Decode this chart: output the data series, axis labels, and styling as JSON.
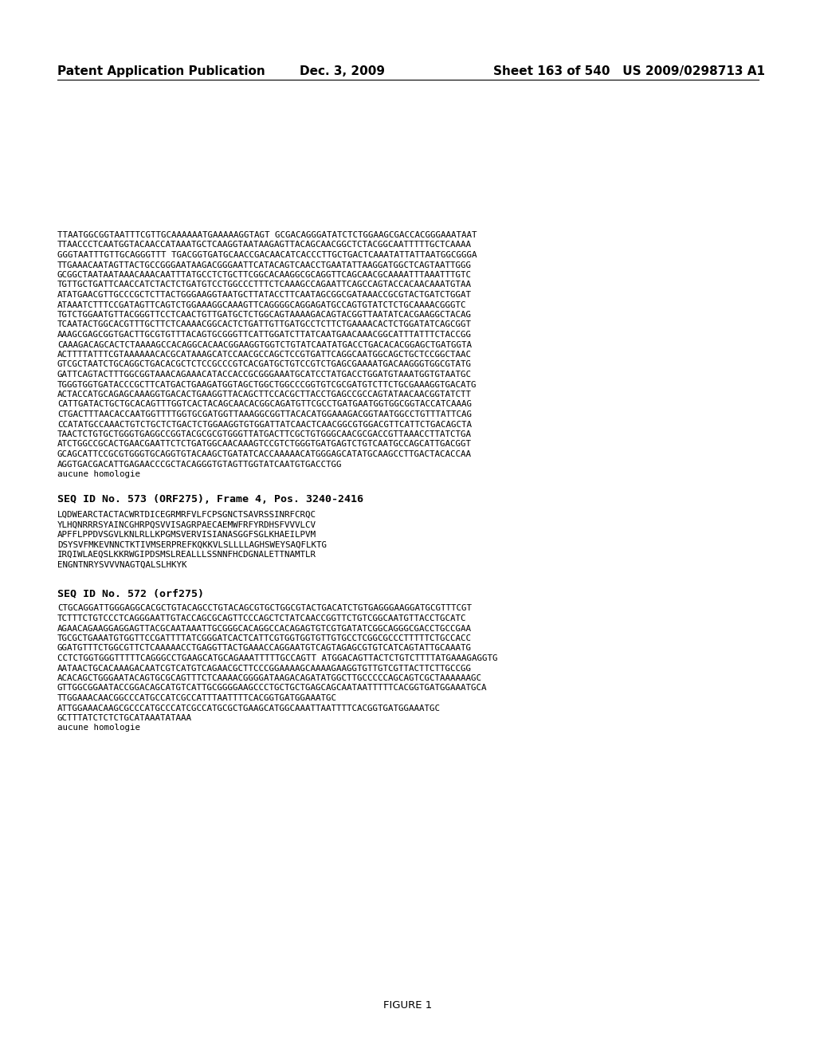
{
  "header_left": "Patent Application Publication",
  "header_center": "Dec. 3, 2009",
  "header_right": "Sheet 163 of 540   US 2009/0298713 A1",
  "background_color": "#ffffff",
  "text_color": "#000000",
  "figure_label": "FIGURE 1",
  "dna_block1": [
    "TTAATGGCGGTAATTTCGTTGCAAAAAATGAAAAAGGTAGT GCGACAGGGATATCTCTGGAAGCGACCACGGGAAATAAT",
    "TTAACCCTCAATGGTACAACCATAAATGCTCAAGGTAATAAGAGTTACAGCAACGGCTCTACGGCAATTTTTGCTCAAAA",
    "GGGTAATTTGTTGCAGGGTTT TGACGGTGATGCAACCGACAACATCACCCTTGCTGACTCAAATATTATTAATGGCGGGA",
    "TTGAAACAATAGTTACTGCCGGGAATAAGACGGGAATTCATACAGTCAACCTGAATATTAAGGATGGCTCAGTAATTGGG",
    "GCGGCTAATAATAAACAAACAATTTATGCCTCTGCTTCGGCACAAGGCGCAGGTTCAGCAACGCAAAATTTAAATTTGTC",
    "TGTTGCTGATTCAACCATCTACTCTGATGTCCTGGCCCTTTCTCAAAGCCAGAATTCAGCCAGTACCACAACAAATGTAA",
    "ATATGAACGTTGCCCGCTCTTACTGGGAAGGTAATGCTTATACCTTCAATAGCGGCGATAAACCGCGTACTGATCTGGAT",
    "ATAAATCTTTCCGATAGTTCAGTCTGGAAAGGCAAAGTTCAGGGGCAGGAGATGCCAGTGTATCTCTGCAAAACGGGTC",
    "TGTCTGGAATGTTACGGGTTCCTCAACTGTTGATGCTCTGGCAGTAAAAGACAGTACGGTTAATATCACGAAGGCTACAG",
    "TCAATACTGGCACGTTTGCTTCTCAAAACGGCACTCTGATTGTTGATGCCTCTTCTGAAAACACTCTGGATATCAGCGGT",
    "AAAGCGAGCGGTGACTTGCGTGTTTACAGTGCGGGTTCATTGGATCTTATCAATGAACAAACGGCATTTATTTCTACCGG",
    "CAAAGACAGCACTCTAAAAGCCACAGGCACAACGGAAGGTGGTCTGTATCAATATGACCTGACACACGGAGCTGATGGTA",
    "ACTTTTATTTCGTAAAAAACACGCATAAAGCATCCAACGCCAGCTCCGTGATTCAGGCAATGGCAGCTGCTCCGGCTAAC",
    "GTCGCTAATCTGCAGGCTGACACGCTCTCCGCCCGTCACGATGCTGTCCGTCTGAGCGAAAATGACAAGGGTGGCGTATG",
    "GATTCAGTACTTTGGCGGTAAACAGAAACATACCACCGCGGGAAATGCATCCTATGACCTGGATGTAAATGGTGTAATGC",
    "TGGGTGGTGATACCCGCTTCATGACTGAAGATGGTAGCTGGCTGGCCCGGTGTCGCGATGTCTTCTGCGAAAGGTGACATG",
    "ACTACCATGCAGAGCAAAGGTGACACTGAAGGTTACAGCTTCCACGCTTACCTGAGCCGCCAGTATAACAACGGTATCTT",
    "CATTGATACTGCTGCACAGTTTGGTCACTACAGCAACACGGCAGATGTTCGCCTGATGAATGGTGGCGGTACCATCAAAG",
    "CTGACTTTAACACCAATGGTTTTGGTGCGATGGTTAAAGGCGGTTACACATGGAAAGACGGTAATGGCCTGTTTATTCAG",
    "CCATATGCCAAACTGTCTGCTCTGACTCTGGAAGGTGTGGATTATCAACTCAACGGCGTGGACGTTCATTCTGACAGCTA",
    "TAACTCTGTGCTGGGTGAGGCCGGTACGCGCGTGGGTTATGACTTCGCTGTGGGCAACGCGACCGTTAAACCTTATCTGA",
    "ATCTGGCCGCACTGAACGAATTCTCTGATGGCAACAAAGTCCGTCTGGGTGATGAGTCTGTCAATGCCAGCATTGACGGT",
    "GCAGCATTCCGCGTGGGTGCAGGTGTACAAGCTGATATCACCAAAAACATGGGAGCATATGCAAGCCTTGACTACACCAA",
    "AGGTGACGACATTGAGAACCCGCTACAGGGTGTAGTTGGTATCAATGTGACCTGG",
    "aucune homologie"
  ],
  "seq573_label": "SEQ ID No. 573 (ORF275), Frame 4, Pos. 3240-2416",
  "protein573": [
    "LQDWEARCTACTACWRTDICEGRMRFVLFCPSGNCTSAVRSSINRFCRQC",
    "YLHQNRRRSYAINCGHRPQSVVISAGRPAECAEMWFRFYRDHSFVVVLCV",
    "APFFLPPDVSGVLKNLRLLKPGMSVERVISIANASGGFSGLKHAEILPVM",
    "DSYSVFMKEVNNCTKTIVMSERPREFKQKKVLSLLLLAGHSWEYSAQFLKTG",
    "IRQIWLAEQSLKKRWGIPDSMSLREALLLSSNNFHCDGNALETTNAMTLR",
    "ENGNTNRYSVVVNAGTQALSLHKYK"
  ],
  "seq572_label": "SEQ ID No. 572 (orf275)",
  "dna_block2": [
    "CTGCAGGATTGGGAGGCACGCTGTACAGCCTGTACAGCGTGCTGGCGTACTGACATCTGTGAGGGAAGGATGCGTTTCGT",
    "TCTTTCTGTCCCTCAGGGAATTGTACCAGCGCAGTTCCCAGCTCTATCAACCGGTTCTGTCGGCAATGTTACCTGCATC",
    "AGAACAGAAGGAGGAGTTACGCAATAAATTGCGGGCACAGGCCACAGAGTGTCGTGATATCGGCAGGGCGACCTGCCGAA",
    "TGCGCTGAAATGTGGTTCCGATTTTATCGGGATCACTCATTCGTGGTGGTGTTGTGCCTCGGCGCCCTTTTTCTGCCACC",
    "GGATGTTTCTGGCGTTCTCAAAAACCTGAGGTTACTGAAACCAGGAATGTCAGTAGAGCGTGTCATCAGTATTGCAAATG",
    "CCTCTGGTGGGTTTTTCAGGGCCTGAAGCATGCAGAAATTTTTGCCAGTT ATGGACAGTTACTCTGTCTTTTATGAAAGAGGTG",
    "AATAACTGCACAAAGACAATCGTCATGTCAGAACGCTTCCCGGAAAAGCAAAAGAAGGTGTTGTCGTTACTTCTTGCCGG",
    "ACACAGCTGGGAATACAGTGCGCAGTTTCTCAAAACGGGGATAAGACAGATATGGCTTGCCCCCAGCAGTCGCTAAAAAAGC",
    "GTTGGCGGAATACCGGACAGCATGTCATTGCGGGGAAGCCCTGCTGCTGAGCAGCAATAATTTTTCACGGTGATGGAAATGCA",
    "TTGGAAACAACGGCCCATGCCATCGCCATTTAATTTTCACGGTGATGGAAATGC",
    "ATTGGAAACAAGCGCCCATGCCCATCGCCATGCGCTGAAGCATGGCAAATTAATTTTCACGGTGATGGAAATGC",
    "GCTTTATCTCTCTGCATAAATATAAA"
  ],
  "aucune2": "aucune homologie"
}
